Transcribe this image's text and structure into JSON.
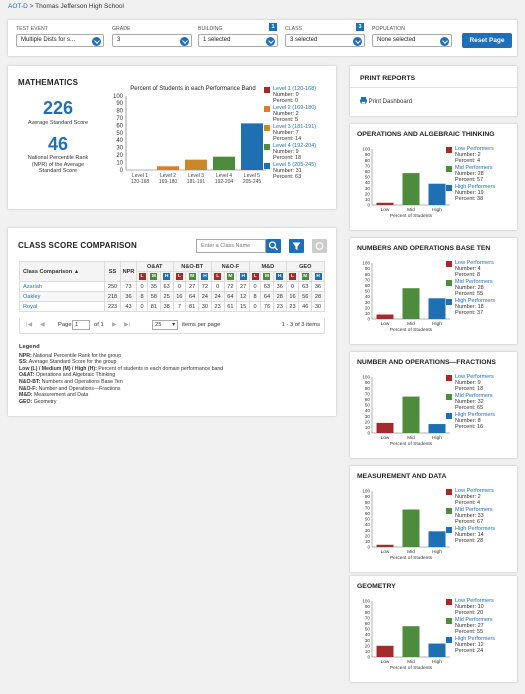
{
  "breadcrumb": {
    "link": "AOT-D",
    "sep": " > ",
    "current": "Thomas Jefferson High School"
  },
  "filters": {
    "test_event": {
      "label": "TEST EVENT",
      "value": "Multiple Dists for s..."
    },
    "grade": {
      "label": "GRADE",
      "value": "3"
    },
    "building": {
      "label": "BUILDING",
      "value": "1 selected",
      "badge": "1"
    },
    "class": {
      "label": "CLASS",
      "value": "3 selected",
      "badge": "3"
    },
    "population": {
      "label": "POPULATION",
      "value": "None selected"
    },
    "reset_label": "Reset Page"
  },
  "colors": {
    "level1": "#a52a2a",
    "level2": "#e07b27",
    "level3": "#c9892a",
    "level4": "#4c8c3c",
    "level5": "#1f6fb3",
    "low": "#a52a2a",
    "mid": "#4c8c3c",
    "high": "#1f6fb3",
    "accent": "#1e6fb8"
  },
  "math": {
    "title": "MATHEMATICS",
    "avg_score": "226",
    "avg_score_label": "Average Standard Score",
    "npr": "46",
    "npr_label": "National Percentile Rank (NPR) of the Average Standard Score",
    "chart_title": "Percent of Students in each Performance Band"
  },
  "chart_data": [
    {
      "type": "bar",
      "title": "Percent of Students in each Performance Band",
      "categories": [
        "Level 1 120-168",
        "Level 2 169-180",
        "Level 3 181-191",
        "Level 4 192-204",
        "Level 5 205-245"
      ],
      "tick_main": [
        "Level 1",
        "Level 2",
        "Level 3",
        "Level 4",
        "Level 5"
      ],
      "tick_sub": [
        "120-168",
        "169-180",
        "181-191",
        "192-204",
        "205-245"
      ],
      "values": [
        0,
        5,
        14,
        18,
        63
      ],
      "ylim": [
        0,
        100
      ],
      "yticks": [
        "100",
        "90",
        "80",
        "70",
        "60",
        "50",
        "40",
        "30",
        "20",
        "10",
        "0"
      ],
      "legend": [
        {
          "name": "Level 1 (120-168)",
          "number": "Number: 0",
          "percent": "Percent: 0"
        },
        {
          "name": "Level 2 (169-180)",
          "number": "Number: 2",
          "percent": "Percent: 5"
        },
        {
          "name": "Level 3 (181-191)",
          "number": "Number: 7",
          "percent": "Percent: 14"
        },
        {
          "name": "Level 4 (192-204)",
          "number": "Number: 9",
          "percent": "Percent: 18"
        },
        {
          "name": "Level 5 (205-245)",
          "number": "Number: 31",
          "percent": "Percent: 63"
        }
      ]
    },
    {
      "type": "bar",
      "title": "OPERATIONS AND ALGEBRAIC THINKING",
      "categories": [
        "Low",
        "Mid",
        "High"
      ],
      "values": [
        4,
        57,
        38
      ],
      "xlabel": "Percent of Students",
      "ylim": [
        0,
        100
      ]
    },
    {
      "type": "bar",
      "title": "NUMBERS AND OPERATIONS BASE TEN",
      "categories": [
        "Low",
        "Mid",
        "High"
      ],
      "values": [
        8,
        55,
        37
      ],
      "xlabel": "Percent of Students",
      "ylim": [
        0,
        100
      ]
    },
    {
      "type": "bar",
      "title": "NUMBER AND OPERATIONS—FRACTIONS",
      "categories": [
        "Low",
        "Mid",
        "High"
      ],
      "values": [
        18,
        65,
        16
      ],
      "xlabel": "Percent of Students",
      "ylim": [
        0,
        100
      ]
    },
    {
      "type": "bar",
      "title": "MEASUREMENT AND DATA",
      "categories": [
        "Low",
        "Mid",
        "High"
      ],
      "values": [
        4,
        67,
        28
      ],
      "xlabel": "Percent of Students",
      "ylim": [
        0,
        100
      ]
    },
    {
      "type": "bar",
      "title": "GEOMETRY",
      "categories": [
        "Low",
        "Mid",
        "High"
      ],
      "values": [
        20,
        55,
        24
      ],
      "xlabel": "Percent of Students",
      "ylim": [
        0,
        100
      ]
    }
  ],
  "print_reports": {
    "title": "PRINT REPORTS",
    "link": "Print Dashboard"
  },
  "domains": [
    {
      "title": "OPERATIONS AND ALGEBRAIC THINKING",
      "low": [
        "Number: 2",
        "Percent: 4"
      ],
      "mid": [
        "Number: 28",
        "Percent: 57"
      ],
      "high": [
        "Number: 19",
        "Percent: 38"
      ]
    },
    {
      "title": "NUMBERS AND OPERATIONS BASE TEN",
      "low": [
        "Number: 4",
        "Percent: 8"
      ],
      "mid": [
        "Number: 28",
        "Percent: 55"
      ],
      "high": [
        "Number: 18",
        "Percent: 37"
      ]
    },
    {
      "title": "NUMBER AND OPERATIONS—FRACTIONS",
      "low": [
        "Number: 9",
        "Percent: 18"
      ],
      "mid": [
        "Number: 32",
        "Percent: 65"
      ],
      "high": [
        "Number: 8",
        "Percent: 16"
      ]
    },
    {
      "title": "MEASUREMENT AND DATA",
      "low": [
        "Number: 2",
        "Percent: 4"
      ],
      "mid": [
        "Number: 33",
        "Percent: 67"
      ],
      "high": [
        "Number: 14",
        "Percent: 28"
      ]
    },
    {
      "title": "GEOMETRY",
      "low": [
        "Number: 10",
        "Percent: 20"
      ],
      "mid": [
        "Number: 27",
        "Percent: 55"
      ],
      "high": [
        "Number: 12",
        "Percent: 24"
      ]
    }
  ],
  "domain_labels": {
    "low": "Low Performers",
    "mid": "Mid Performers",
    "high": "High Performers",
    "xlabel": "Percent of Students",
    "ticks": [
      "100",
      "90",
      "80",
      "70",
      "60",
      "50",
      "40",
      "30",
      "20",
      "10",
      "0"
    ],
    "cats": [
      "Low",
      "Mid",
      "High"
    ]
  },
  "class_comparison": {
    "title": "CLASS SCORE COMPARISON",
    "search_placeholder": "Enter a Class Name",
    "headers": {
      "name": "Class Comparison",
      "ss": "SS",
      "npr": "NPR",
      "groups": [
        "O&AT",
        "N&O-BT",
        "N&O-F",
        "M&D",
        "GEO"
      ],
      "lmh": [
        "L",
        "M",
        "H"
      ]
    },
    "rows": [
      {
        "name": "Azariah",
        "ss": "250",
        "npr": "73",
        "vals": [
          "0",
          "35",
          "63",
          "0",
          "27",
          "72",
          "0",
          "72",
          "27",
          "0",
          "63",
          "36",
          "0",
          "63",
          "36"
        ]
      },
      {
        "name": "Oakley",
        "ss": "218",
        "npr": "36",
        "vals": [
          "8",
          "58",
          "25",
          "16",
          "64",
          "24",
          "24",
          "64",
          "12",
          "8",
          "64",
          "28",
          "16",
          "56",
          "28"
        ]
      },
      {
        "name": "Royal",
        "ss": "223",
        "npr": "43",
        "vals": [
          "0",
          "81",
          "38",
          "7",
          "81",
          "30",
          "23",
          "61",
          "15",
          "0",
          "76",
          "23",
          "23",
          "46",
          "30"
        ]
      }
    ],
    "pager": {
      "page_label": "Page",
      "page": "1",
      "of": "of 1",
      "per_page": "25",
      "per_page_label": "items per page",
      "range": "1 - 3 of 3 items"
    }
  },
  "legend": {
    "title": "Legend",
    "items": [
      {
        "key": "NPR:",
        "text": " National Percentile Rank for the group"
      },
      {
        "key": "SS:",
        "text": " Average Standard Score for the group"
      },
      {
        "key": "Low (L) / Medium (M) / High (H):",
        "text": " Percent of students in each domain performance band"
      },
      {
        "key": "O&AT:",
        "text": " Operations and Algebraic Thinking"
      },
      {
        "key": "N&O-BT:",
        "text": " Numbers and Operations Base Ten"
      },
      {
        "key": "N&O-F:",
        "text": " Number and Operations—Fractions"
      },
      {
        "key": "M&D:",
        "text": " Measurement and Data"
      },
      {
        "key": "GEO:",
        "text": " Geometry"
      }
    ]
  }
}
